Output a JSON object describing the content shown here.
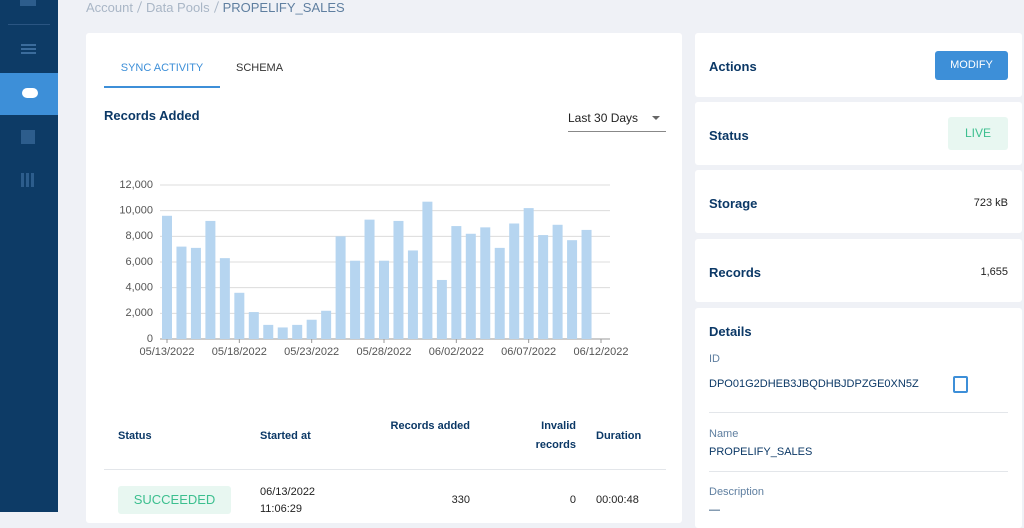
{
  "breadcrumb": [
    "Account",
    "Data Pools",
    "PROPELIFY_SALES"
  ],
  "tabs": [
    "SYNC ACTIVITY",
    "SCHEMA"
  ],
  "range_select": "Last 30 Days",
  "chart_data": {
    "type": "bar",
    "title": "Records Added",
    "x": [
      "05/13/2022",
      "05/14/2022",
      "05/15/2022",
      "05/16/2022",
      "05/17/2022",
      "05/18/2022",
      "05/19/2022",
      "05/20/2022",
      "05/21/2022",
      "05/22/2022",
      "05/23/2022",
      "05/24/2022",
      "05/25/2022",
      "05/26/2022",
      "05/27/2022",
      "05/28/2022",
      "05/29/2022",
      "05/30/2022",
      "05/31/2022",
      "06/01/2022",
      "06/02/2022",
      "06/03/2022",
      "06/04/2022",
      "06/05/2022",
      "06/06/2022",
      "06/07/2022",
      "06/08/2022",
      "06/09/2022",
      "06/10/2022",
      "06/11/2022"
    ],
    "values": [
      9600,
      7200,
      7100,
      9200,
      6300,
      3600,
      2100,
      1100,
      900,
      1100,
      1500,
      2200,
      8000,
      6100,
      9300,
      6100,
      9200,
      6900,
      10700,
      4600,
      8800,
      8200,
      8700,
      7100,
      9000,
      10200,
      8100,
      8900,
      7700,
      8500
    ],
    "color": "#b6d5f0",
    "xticks": [
      "05/13/2022",
      "05/18/2022",
      "05/23/2022",
      "05/28/2022",
      "06/02/2022",
      "06/07/2022",
      "06/12/2022"
    ],
    "ylim": [
      0,
      12000
    ],
    "yticks": [
      0,
      {
        "value": 2000,
        "label": "2,000"
      },
      {
        "value": 4000,
        "label": "4,000"
      },
      {
        "value": 6000,
        "label": "6,000"
      },
      {
        "value": 8000,
        "label": "8,000"
      },
      {
        "value": 10000,
        "label": "10,000"
      },
      {
        "value": 12000,
        "label": "12,000"
      }
    ],
    "grid": true
  },
  "table": {
    "columns": [
      "Status",
      "Started at",
      "Records added",
      "Invalid records",
      "Duration"
    ],
    "rows": [
      [
        "SUCCEEDED",
        "06/13/2022 11:06:29",
        330,
        0,
        "00:00:48"
      ]
    ]
  },
  "panel": {
    "actions": {
      "label": "Actions",
      "button": "MODIFY"
    },
    "status": {
      "label": "Status",
      "value": "LIVE"
    },
    "storage": {
      "label": "Storage",
      "value": "723 kB"
    },
    "records": {
      "label": "Records",
      "value": "1,655"
    },
    "details": {
      "title": "Details",
      "fields": [
        {
          "label": "ID",
          "value": "DPO01G2DHEB3JBQDHBJDPZGE0XN5Z"
        },
        {
          "label": "Name",
          "value": "PROPELIFY_SALES"
        },
        {
          "label": "Description",
          "value": "—"
        }
      ]
    }
  }
}
